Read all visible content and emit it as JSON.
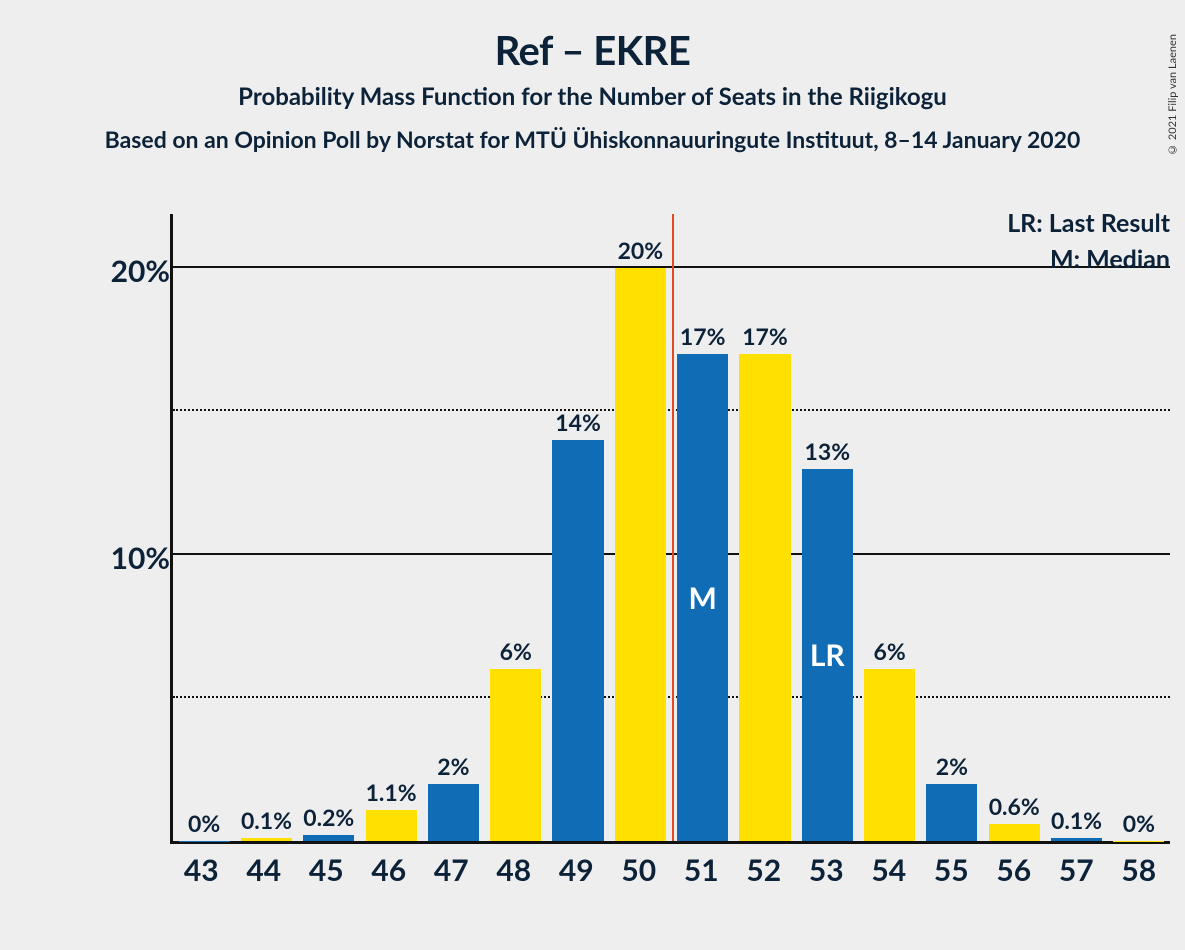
{
  "copyright": "© 2021 Filip van Laenen",
  "chart": {
    "type": "bar",
    "title": "Ref – EKRE",
    "subtitle": "Probability Mass Function for the Number of Seats in the Riigikogu",
    "subsubtitle": "Based on an Opinion Poll by Norstat for MTÜ Ühiskonnauuringute Instituut, 8–14 January 2020",
    "background_color": "#eeeeee",
    "text_color": "#0b2239",
    "axis_color": "#111111",
    "colors": {
      "blue": "#106cb5",
      "yellow": "#ffe000"
    },
    "median_line_color": "#e24a1f",
    "ylim": [
      0,
      22
    ],
    "y_major_ticks": [
      10,
      20
    ],
    "y_minor_ticks": [
      5,
      15
    ],
    "y_tick_labels": {
      "10": "10%",
      "20": "20%"
    },
    "x_categories": [
      "43",
      "44",
      "45",
      "46",
      "47",
      "48",
      "49",
      "50",
      "51",
      "52",
      "53",
      "54",
      "55",
      "56",
      "57",
      "58"
    ],
    "bars": [
      {
        "x": "43",
        "value": 0,
        "label": "0%",
        "color": "blue"
      },
      {
        "x": "44",
        "value": 0.1,
        "label": "0.1%",
        "color": "yellow"
      },
      {
        "x": "45",
        "value": 0.2,
        "label": "0.2%",
        "color": "blue"
      },
      {
        "x": "46",
        "value": 1.1,
        "label": "1.1%",
        "color": "yellow"
      },
      {
        "x": "47",
        "value": 2,
        "label": "2%",
        "color": "blue"
      },
      {
        "x": "48",
        "value": 6,
        "label": "6%",
        "color": "yellow"
      },
      {
        "x": "49",
        "value": 14,
        "label": "14%",
        "color": "blue"
      },
      {
        "x": "50",
        "value": 20,
        "label": "20%",
        "color": "yellow"
      },
      {
        "x": "51",
        "value": 17,
        "label": "17%",
        "color": "blue",
        "in_bar": "M"
      },
      {
        "x": "52",
        "value": 17,
        "label": "17%",
        "color": "yellow"
      },
      {
        "x": "53",
        "value": 13,
        "label": "13%",
        "color": "blue",
        "in_bar": "LR"
      },
      {
        "x": "54",
        "value": 6,
        "label": "6%",
        "color": "yellow"
      },
      {
        "x": "55",
        "value": 2,
        "label": "2%",
        "color": "blue"
      },
      {
        "x": "56",
        "value": 0.6,
        "label": "0.6%",
        "color": "yellow"
      },
      {
        "x": "57",
        "value": 0.1,
        "label": "0.1%",
        "color": "blue"
      },
      {
        "x": "58",
        "value": 0,
        "label": "0%",
        "color": "yellow"
      }
    ],
    "median_at_boundary_after_index": 7,
    "legend": {
      "lr": "LR: Last Result",
      "m": "M: Median"
    },
    "title_fontsize": 40,
    "subtitle_fontsize": 24,
    "label_fontsize": 23,
    "tick_fontsize": 30
  }
}
